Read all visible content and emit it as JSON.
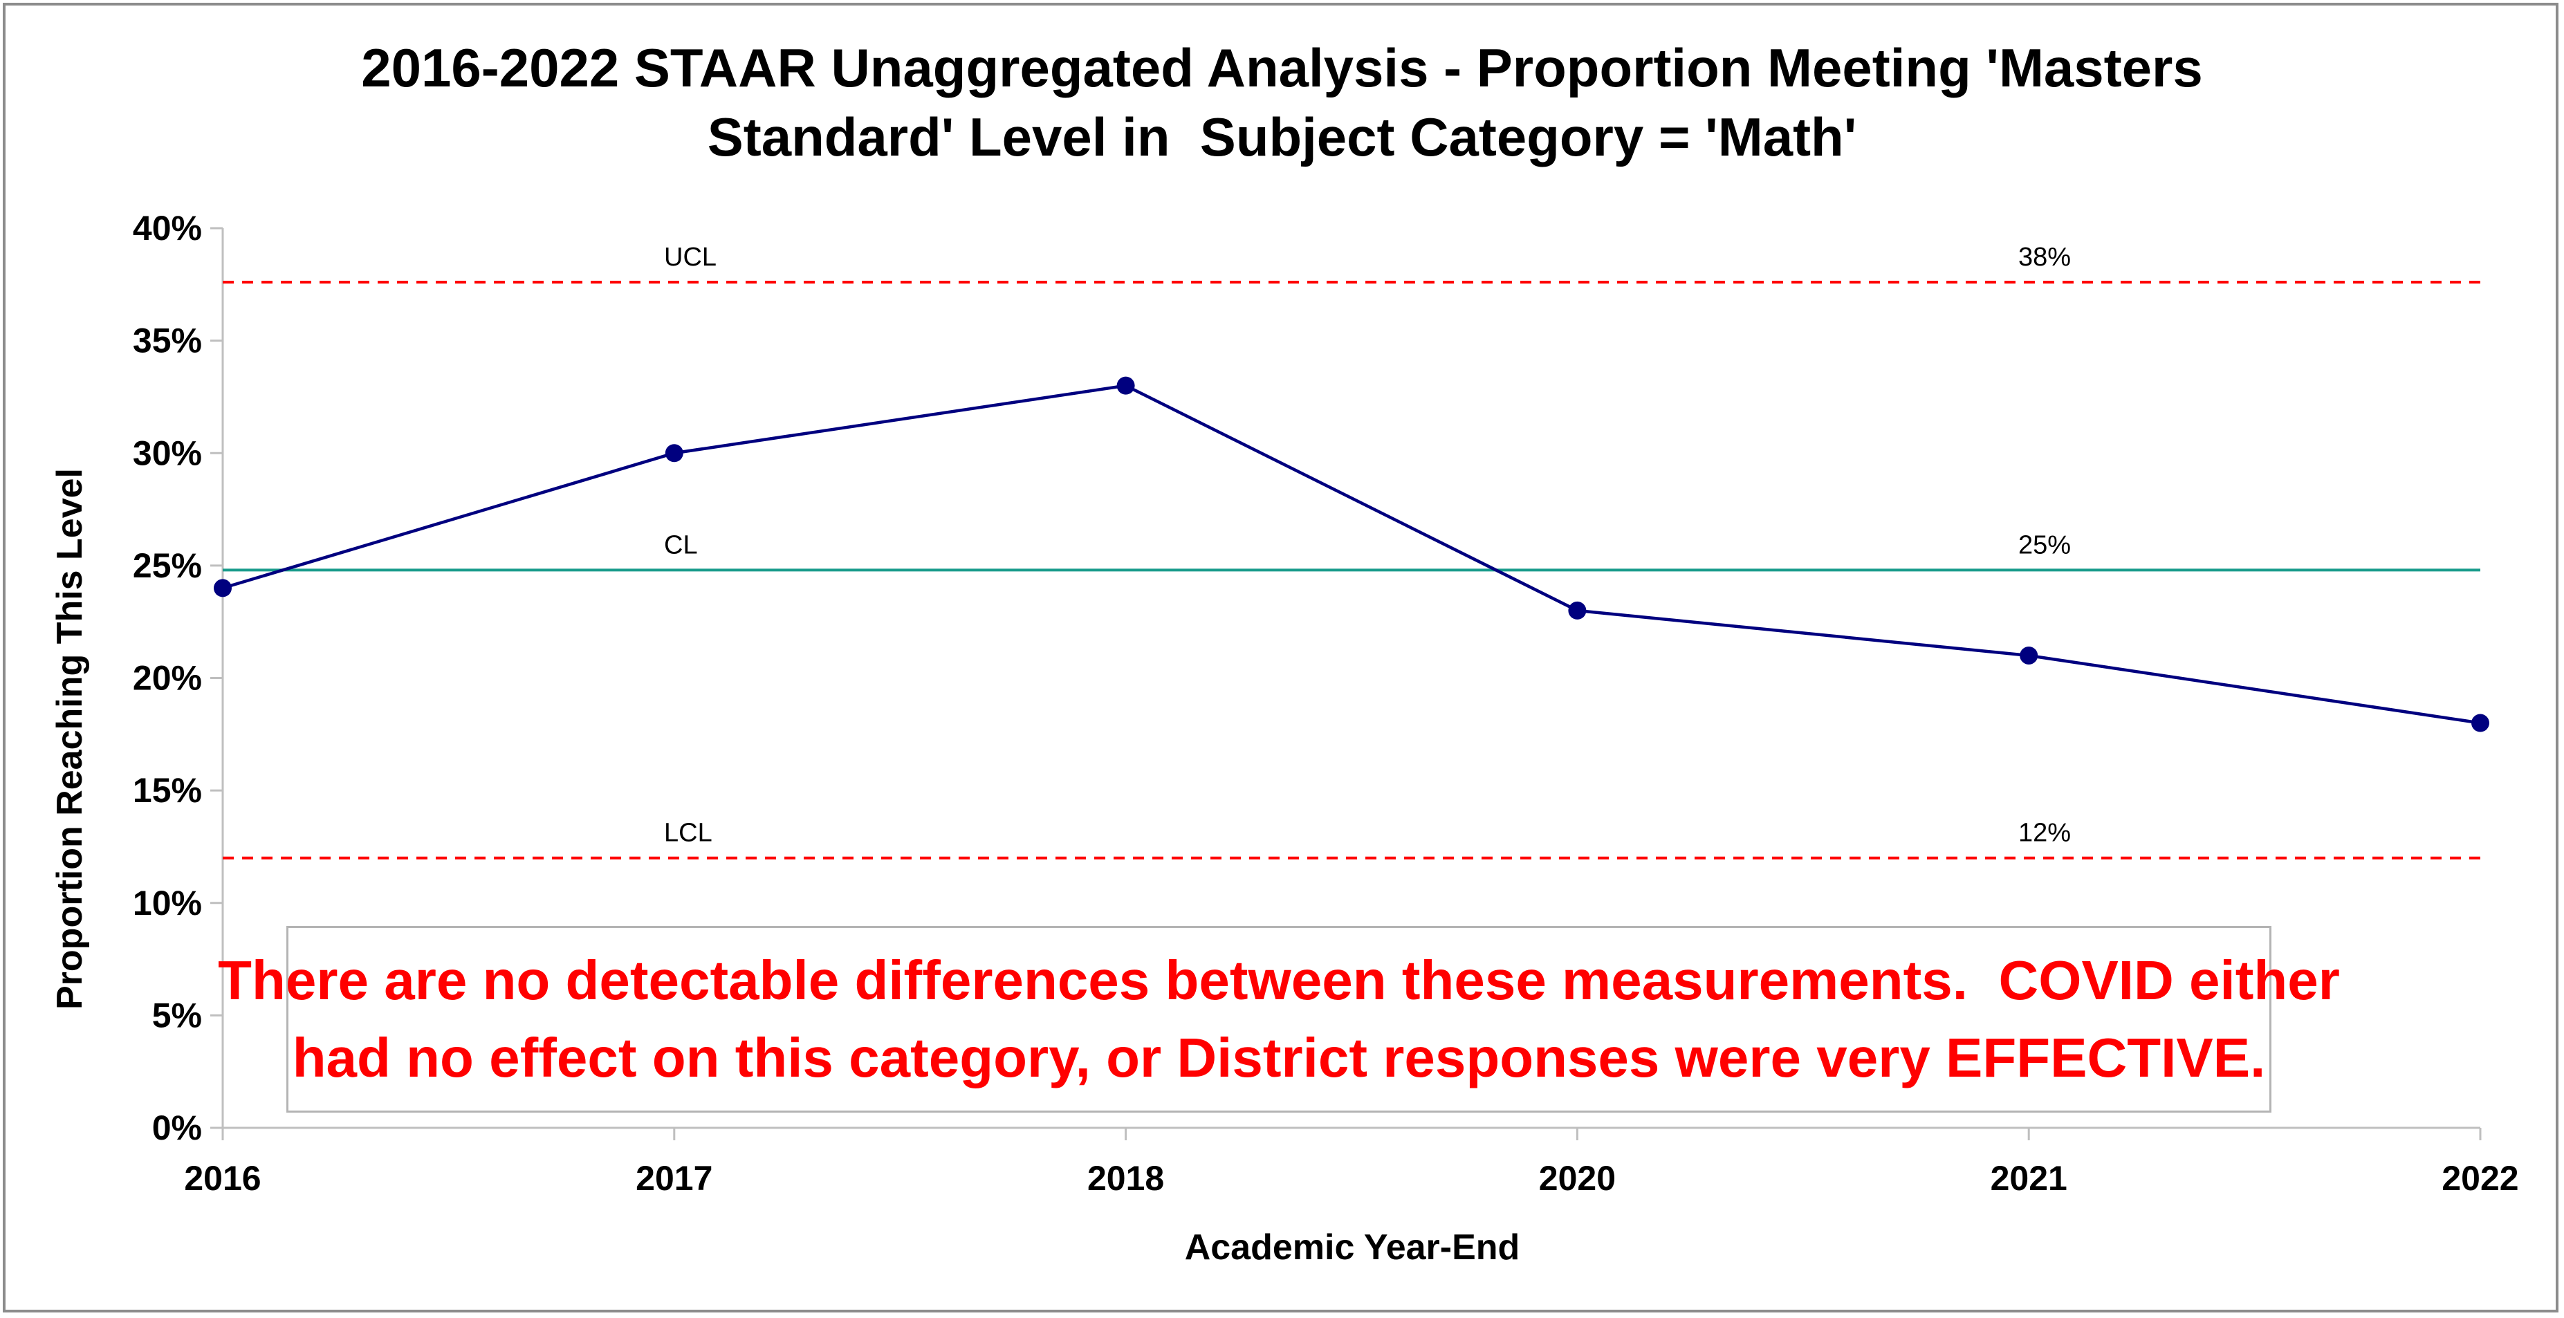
{
  "title_lines": [
    "2016-2022 STAAR Unaggregated Analysis - Proportion Meeting 'Masters",
    "Standard' Level in  Subject Category = 'Math'"
  ],
  "note_lines": [
    "There are no detectable differences between these measurements.  COVID either",
    "had no effect on this category, or District responses were very EFFECTIVE."
  ],
  "colors": {
    "series": "#00007f",
    "center_line": "#1a9c8c",
    "control_limits": "#ff0000",
    "note_text": "#ff0000"
  },
  "chart_data": {
    "type": "line",
    "title": "2016-2022 STAAR Unaggregated Analysis - Proportion Meeting 'Masters Standard' Level in  Subject Category = 'Math'",
    "xlabel": "Academic Year-End",
    "ylabel": "Proportion Reaching This Level",
    "categories": [
      "2016",
      "2017",
      "2018",
      "2020",
      "2021",
      "2022"
    ],
    "series": [
      {
        "values": [
          0.24,
          0.3,
          0.33,
          0.23,
          0.21,
          0.18
        ]
      }
    ],
    "ylim": [
      0,
      0.4
    ],
    "yticks": [
      0,
      0.05,
      0.1,
      0.15,
      0.2,
      0.25,
      0.3,
      0.35,
      0.4
    ],
    "ytick_labels": [
      "0%",
      "5%",
      "10%",
      "15%",
      "20%",
      "25%",
      "30%",
      "35%",
      "40%"
    ],
    "reference_lines": [
      {
        "name": "UCL",
        "value": 0.376,
        "label": "38%",
        "style": "dashed"
      },
      {
        "name": "CL",
        "value": 0.248,
        "label": "25%",
        "style": "solid"
      },
      {
        "name": "LCL",
        "value": 0.12,
        "label": "12%",
        "style": "dashed"
      }
    ],
    "grid": false,
    "legend": "none"
  }
}
